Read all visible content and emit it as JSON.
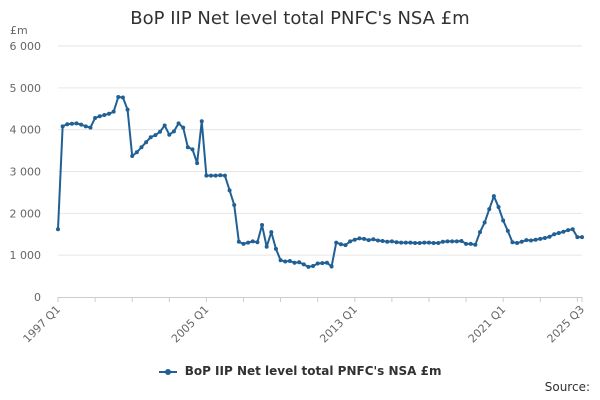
{
  "chart_data": {
    "type": "line",
    "title": "BoP IIP Net level total PNFC's NSA £m",
    "y_unit": "£m",
    "ylim": [
      0,
      6000
    ],
    "y_ticks": [
      "0",
      "1 000",
      "2 000",
      "3 000",
      "4 000",
      "5 000",
      "6 000"
    ],
    "x_ticks": [
      "1997 Q1",
      "2005 Q1",
      "2013 Q1",
      "2021 Q1",
      "2025 Q3"
    ],
    "grid": true,
    "legend_position": "bottom",
    "series": [
      {
        "name": "BoP IIP Net level total PNFC's NSA £m",
        "color": "#206095",
        "values": [
          1620,
          4080,
          4130,
          4140,
          4150,
          4120,
          4080,
          4050,
          4280,
          4320,
          4350,
          4380,
          4430,
          4780,
          4770,
          4480,
          3370,
          3460,
          3580,
          3700,
          3820,
          3870,
          3950,
          4100,
          3880,
          3960,
          4150,
          4050,
          3580,
          3530,
          3200,
          4200,
          2900,
          2900,
          2900,
          2910,
          2900,
          2550,
          2200,
          1320,
          1270,
          1300,
          1330,
          1310,
          1720,
          1200,
          1550,
          1150,
          880,
          850,
          860,
          820,
          830,
          780,
          720,
          740,
          800,
          810,
          820,
          730,
          1300,
          1260,
          1240,
          1330,
          1370,
          1400,
          1390,
          1360,
          1380,
          1350,
          1340,
          1320,
          1330,
          1310,
          1300,
          1300,
          1300,
          1290,
          1290,
          1300,
          1300,
          1290,
          1290,
          1320,
          1330,
          1330,
          1330,
          1340,
          1270,
          1270,
          1250,
          1550,
          1780,
          2100,
          2410,
          2150,
          1830,
          1580,
          1310,
          1290,
          1320,
          1360,
          1350,
          1370,
          1390,
          1410,
          1440,
          1500,
          1530,
          1560,
          1600,
          1620,
          1430,
          1430
        ]
      }
    ]
  },
  "legend": {
    "label": "BoP IIP Net level total PNFC's NSA £m"
  },
  "footer": {
    "source": "Source:"
  }
}
